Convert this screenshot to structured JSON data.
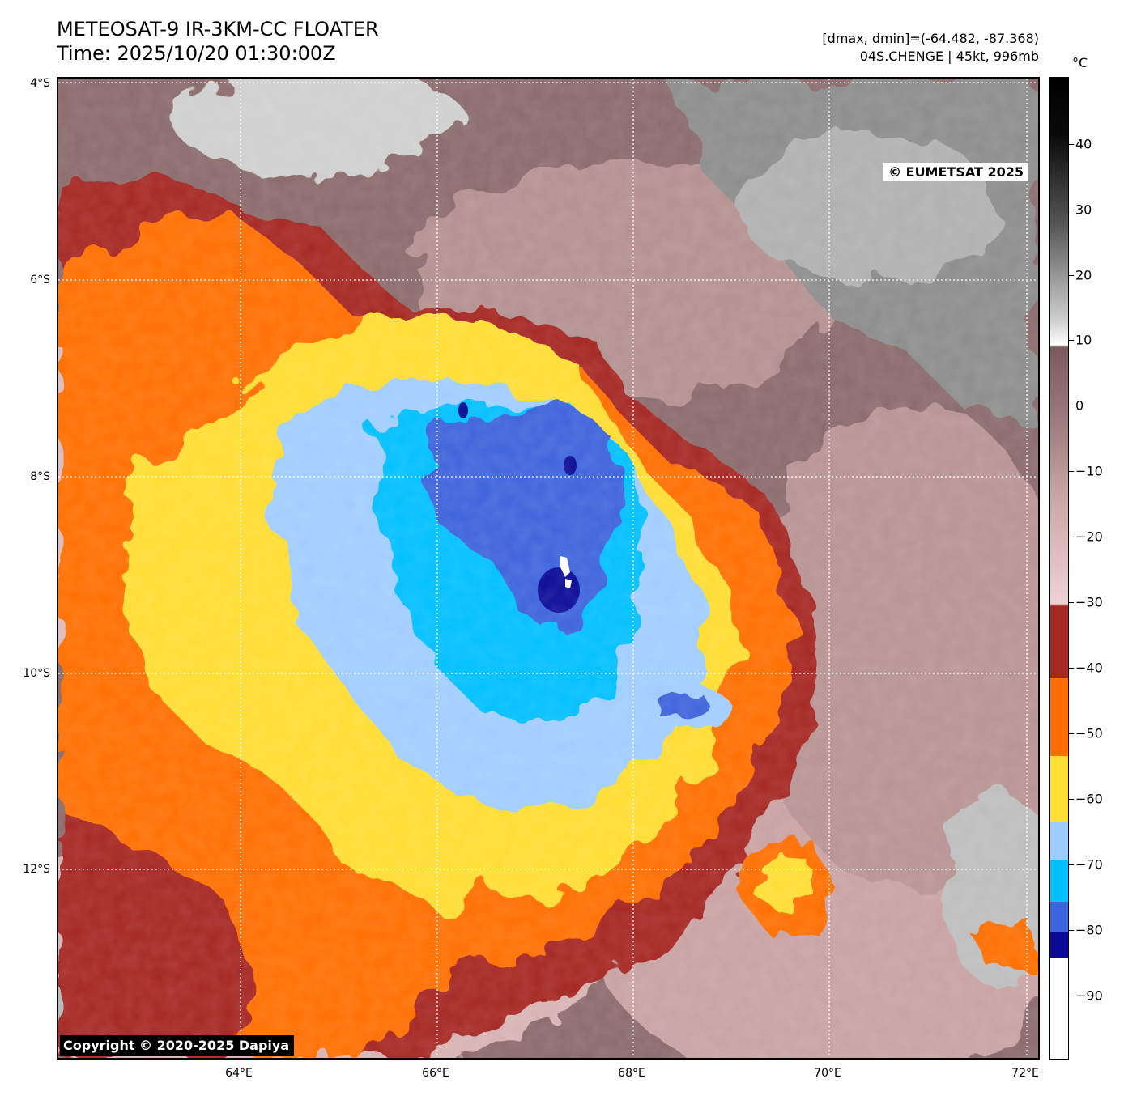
{
  "header": {
    "title_line1": "METEOSAT-9 IR-3KM-CC FLOATER",
    "title_line2": "Time: 2025/10/20 01:30:00Z",
    "range_text": "[dmax, dmin]=(-64.482, -87.368)",
    "storm_text": "04S.CHENGE | 45kt, 996mb"
  },
  "map": {
    "credit_top": "© EUMETSAT 2025",
    "credit_bottom": "Copyright © 2020-2025 Dapiya",
    "lat_labels": [
      "4°S",
      "6°S",
      "8°S",
      "10°S",
      "12°S"
    ],
    "lon_labels": [
      "64°E",
      "66°E",
      "68°E",
      "70°E",
      "72°E"
    ],
    "lat_range": [
      -14,
      -4
    ],
    "lon_range": [
      62,
      72
    ]
  },
  "colorbar": {
    "unit": "°C",
    "ticks": [
      "40",
      "30",
      "20",
      "10",
      "0",
      "−10",
      "−20",
      "−30",
      "−40",
      "−50",
      "−60",
      "−70",
      "−80",
      "−90"
    ],
    "range": [
      -100,
      50
    ],
    "colors": {
      "deep_blue": "#0a0a96",
      "blue": "#3c64dc",
      "cyan": "#00bfff",
      "light_blue": "#a0cdff",
      "yellow": "#ffdd33",
      "orange": "#ff6e00",
      "dark_red": "#a52822",
      "pink": "#f0d2d2",
      "mauve": "#8c6464"
    }
  }
}
